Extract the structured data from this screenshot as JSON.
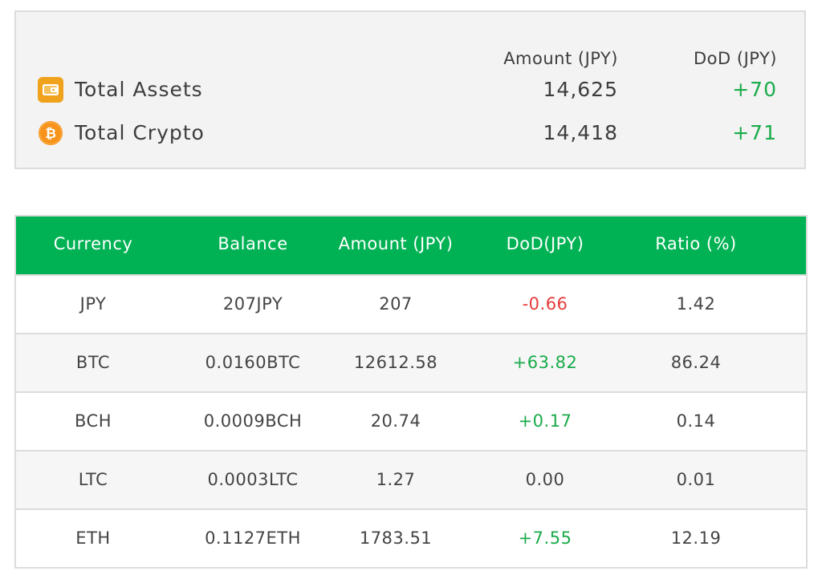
{
  "summary": {
    "headers": {
      "amount": "Amount (JPY)",
      "dod": "DoD (JPY)"
    },
    "rows": [
      {
        "icon": "wallet-icon",
        "label": "Total Assets",
        "amount": "14,625",
        "dod": "+70"
      },
      {
        "icon": "bitcoin-icon",
        "label": "Total Crypto",
        "amount": "14,418",
        "dod": "+71"
      }
    ]
  },
  "table": {
    "headers": [
      "Currency",
      "Balance",
      "Amount (JPY)",
      "DoD(JPY)",
      "Ratio (%)"
    ],
    "rows": [
      {
        "currency": "JPY",
        "balance": "207JPY",
        "amount": "207",
        "dod": "-0.66",
        "ratio": "1.42"
      },
      {
        "currency": "BTC",
        "balance": "0.0160BTC",
        "amount": "12612.58",
        "dod": "+63.82",
        "ratio": "86.24"
      },
      {
        "currency": "BCH",
        "balance": "0.0009BCH",
        "amount": "20.74",
        "dod": "+0.17",
        "ratio": "0.14"
      },
      {
        "currency": "LTC",
        "balance": "0.0003LTC",
        "amount": "1.27",
        "dod": "0.00",
        "ratio": "0.01"
      },
      {
        "currency": "ETH",
        "balance": "0.1127ETH",
        "amount": "1783.51",
        "dod": "+7.55",
        "ratio": "12.19"
      }
    ]
  },
  "colors": {
    "header_green": "#00b254",
    "positive": "#1aab4a",
    "negative": "#e63b3b",
    "wallet_orange": "#f0a21c",
    "bitcoin_orange": "#f7931a"
  }
}
